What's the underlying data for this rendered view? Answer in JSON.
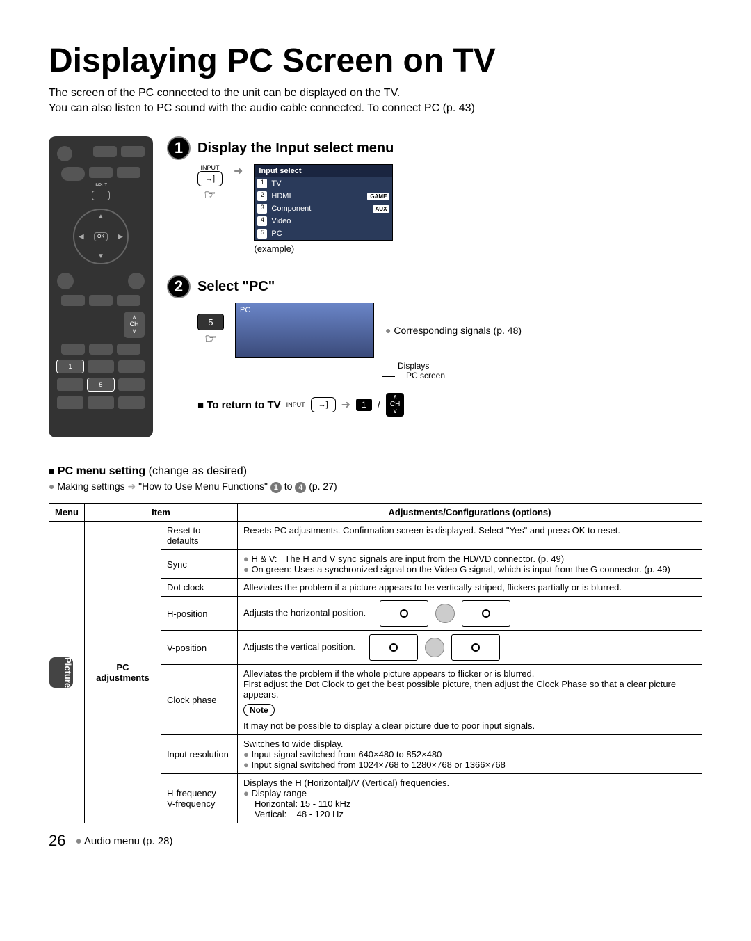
{
  "title": "Displaying PC Screen on TV",
  "intro_l1": "The screen of the PC connected to the unit can be displayed on the TV.",
  "intro_l2": "You can also listen to PC sound with the audio cable connected. To connect PC (p. 43)",
  "remote": {
    "input_label": "INPUT",
    "ok": "OK",
    "ch": "CH",
    "key1": "1",
    "key5": "5"
  },
  "step1": {
    "num": "1",
    "title": "Display the Input select menu",
    "input_lbl": "INPUT",
    "menu_header": "Input select",
    "items": [
      {
        "n": "1",
        "label": "TV",
        "tag": ""
      },
      {
        "n": "2",
        "label": "HDMI",
        "tag": "GAME"
      },
      {
        "n": "3",
        "label": "Component",
        "tag": "AUX"
      },
      {
        "n": "4",
        "label": "Video",
        "tag": ""
      },
      {
        "n": "5",
        "label": "PC",
        "tag": ""
      }
    ],
    "example": "(example)"
  },
  "step2": {
    "num": "2",
    "title": "Select \"PC\"",
    "key": "5",
    "pc_label": "PC",
    "side_note": "Corresponding signals (p. 48)",
    "displays": "Displays",
    "pcscreen": "PC screen"
  },
  "return": {
    "label": "To return to TV",
    "input": "INPUT",
    "one": "1",
    "ch": "CH",
    "slash": "/"
  },
  "pcmenu": {
    "heading_b": "PC menu setting",
    "heading_r": "(change as desired)",
    "making": "Making settings",
    "making2": "\"How to Use Menu Functions\"",
    "c1": "1",
    "to": "to",
    "c4": "4",
    "pref": "(p. 27)"
  },
  "table": {
    "h_menu": "Menu",
    "h_item": "Item",
    "h_adj": "Adjustments/Configurations (options)",
    "menu_label": "Picture",
    "item_group": "PC adjustments",
    "rows": {
      "reset": {
        "item": "Reset to defaults",
        "adj": "Resets PC adjustments. Confirmation screen is displayed. Select \"Yes\" and press OK to reset."
      },
      "sync": {
        "item": "Sync",
        "hv_k": "H & V:",
        "hv_v": "The H and V sync signals are input from the HD/VD connector. (p. 49)",
        "og_k": "On green:",
        "og_v": "Uses a synchronized signal on the Video G signal, which is input from the G connector. (p. 49)"
      },
      "dotclock": {
        "item": "Dot clock",
        "adj": "Alleviates the problem if a picture appears to be vertically-striped, flickers partially or is blurred."
      },
      "hpos": {
        "item": "H-position",
        "adj": "Adjusts the horizontal position."
      },
      "vpos": {
        "item": "V-position",
        "adj": "Adjusts the vertical position."
      },
      "clockphase": {
        "item": "Clock phase",
        "l1": "Alleviates the problem if the whole picture appears to flicker or is blurred.",
        "l2": "First adjust the Dot Clock to get the best possible picture, then adjust the Clock Phase so that a clear picture appears.",
        "note_lbl": "Note",
        "l3": "It may not be possible to display a clear picture due to poor input signals."
      },
      "inputres": {
        "item": "Input resolution",
        "l1": "Switches to wide display.",
        "l2": "Input signal switched from 640×480 to 852×480",
        "l3": "Input signal switched from 1024×768 to 1280×768 or 1366×768"
      },
      "freq": {
        "item1": "H-frequency",
        "item2": "V-frequency",
        "l1": "Displays the H (Horizontal)/V (Vertical) frequencies.",
        "l2": "Display range",
        "l3": "Horizontal: 15 - 110 kHz",
        "l4": "Vertical:    48 - 120 Hz"
      }
    }
  },
  "footer": {
    "page": "26",
    "audio": "Audio menu (p. 28)"
  }
}
